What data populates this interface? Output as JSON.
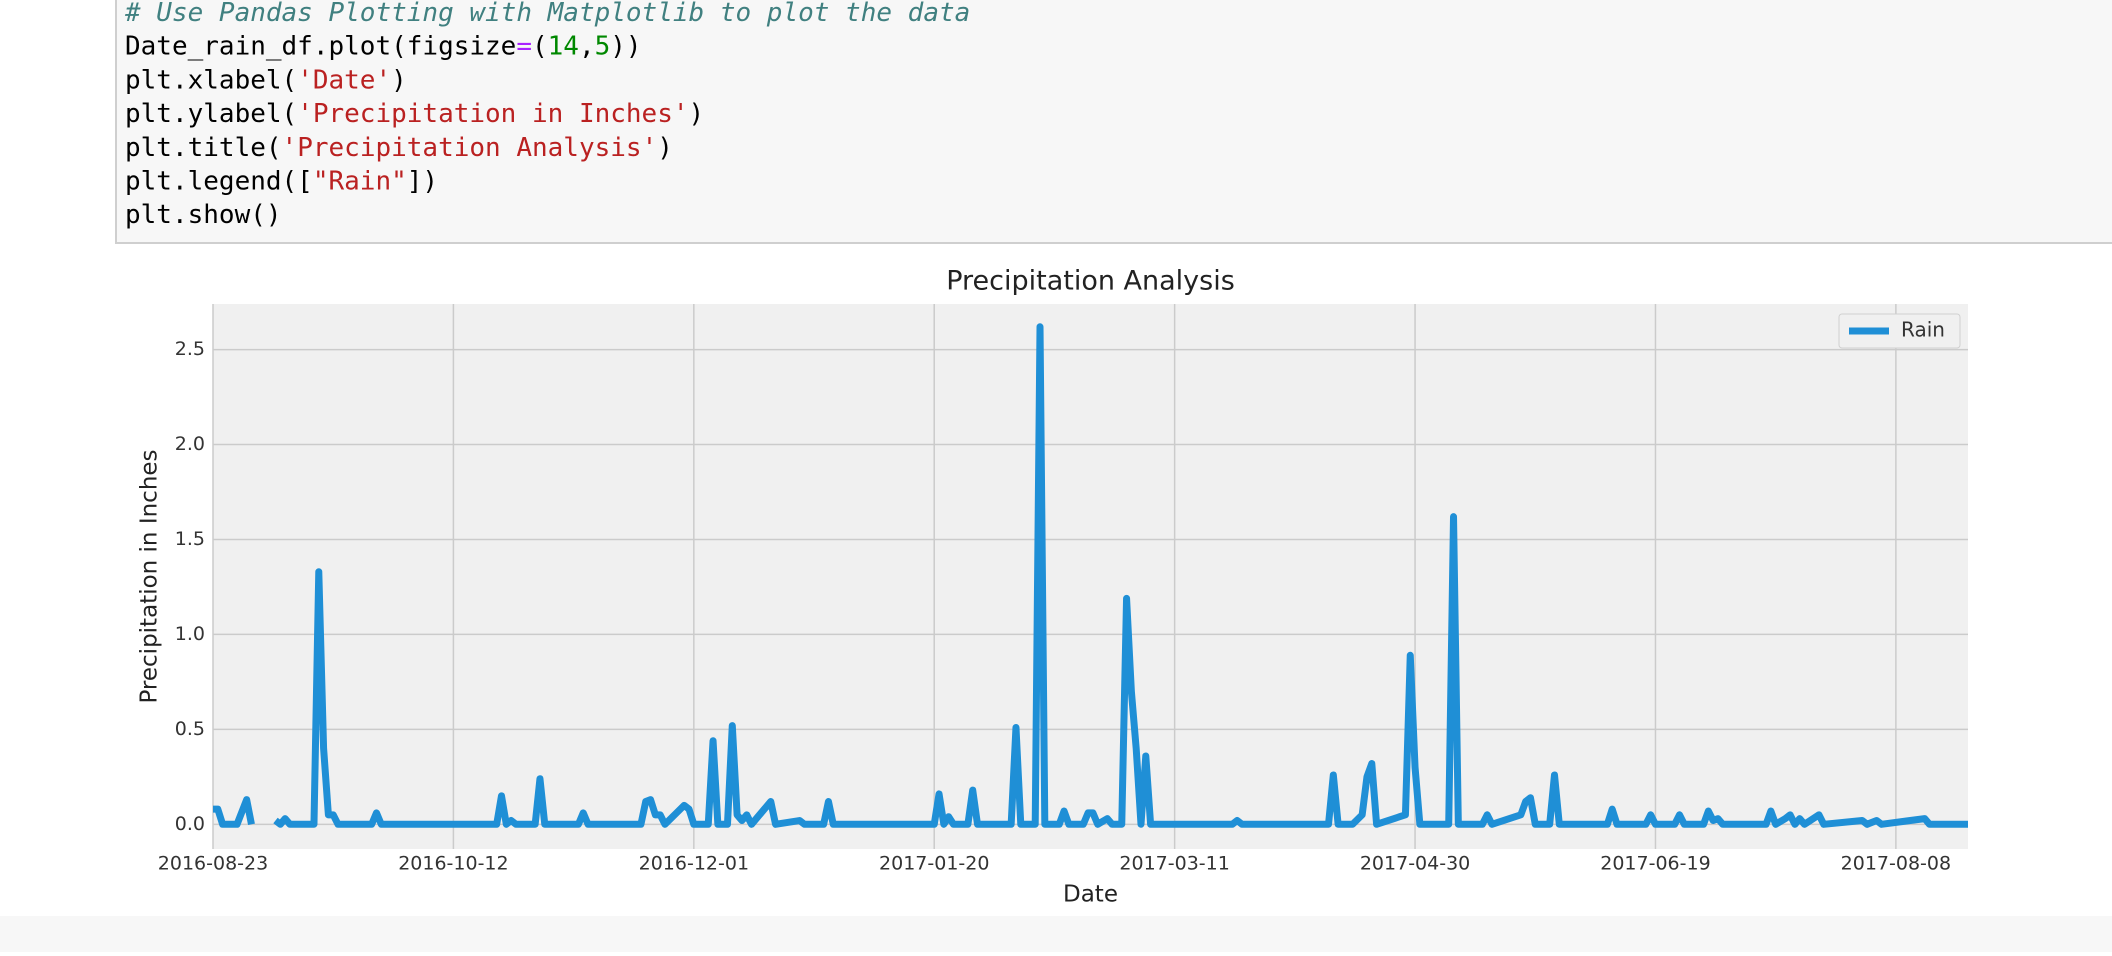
{
  "code": {
    "lines": [
      [
        {
          "text": "# Use Pandas Plotting with Matplotlib to plot the data",
          "color": "#408080",
          "italic": true
        }
      ],
      [
        {
          "text": "Date_rain_df.plot(figsize",
          "color": "#000000"
        },
        {
          "text": "=",
          "color": "#aa22ff"
        },
        {
          "text": "(",
          "color": "#000000"
        },
        {
          "text": "14",
          "color": "#008800"
        },
        {
          "text": ",",
          "color": "#000000"
        },
        {
          "text": "5",
          "color": "#008800"
        },
        {
          "text": "))",
          "color": "#000000"
        }
      ],
      [
        {
          "text": "plt.xlabel(",
          "color": "#000000"
        },
        {
          "text": "'Date'",
          "color": "#ba2121"
        },
        {
          "text": ")",
          "color": "#000000"
        }
      ],
      [
        {
          "text": "plt.ylabel(",
          "color": "#000000"
        },
        {
          "text": "'Precipitation in Inches'",
          "color": "#ba2121"
        },
        {
          "text": ")",
          "color": "#000000"
        }
      ],
      [
        {
          "text": "plt.title(",
          "color": "#000000"
        },
        {
          "text": "'Precipitation Analysis'",
          "color": "#ba2121"
        },
        {
          "text": ")",
          "color": "#000000"
        }
      ],
      [
        {
          "text": "plt.legend([",
          "color": "#000000"
        },
        {
          "text": "\"Rain\"",
          "color": "#ba2121"
        },
        {
          "text": "])",
          "color": "#000000"
        }
      ],
      [
        {
          "text": "plt.show()",
          "color": "#000000"
        }
      ]
    ]
  },
  "chart_data": {
    "type": "line",
    "title": "Precipitation Analysis",
    "x_label": "Date",
    "y_label": "Precipitation in Inches",
    "x": [
      "2016-08-23",
      "2016-08-24",
      "2016-08-25",
      "2016-08-28",
      "2016-08-30",
      "2016-08-31",
      "2016-09-04",
      "2016-09-05",
      "2016-09-06",
      "2016-09-07",
      "2016-09-08",
      "2016-09-13",
      "2016-09-14",
      "2016-09-15",
      "2016-09-16",
      "2016-09-17",
      "2016-09-18",
      "2016-09-25",
      "2016-09-26",
      "2016-09-27",
      "2016-10-21",
      "2016-10-22",
      "2016-10-23",
      "2016-10-24",
      "2016-10-25",
      "2016-10-29",
      "2016-10-30",
      "2016-10-31",
      "2016-11-07",
      "2016-11-08",
      "2016-11-09",
      "2016-11-20",
      "2016-11-21",
      "2016-11-22",
      "2016-11-23",
      "2016-11-24",
      "2016-11-25",
      "2016-11-29",
      "2016-11-30",
      "2016-12-01",
      "2016-12-04",
      "2016-12-05",
      "2016-12-06",
      "2016-12-08",
      "2016-12-09",
      "2016-12-10",
      "2016-12-11",
      "2016-12-12",
      "2016-12-13",
      "2016-12-17",
      "2016-12-18",
      "2016-12-23",
      "2016-12-24",
      "2016-12-28",
      "2016-12-29",
      "2016-12-30",
      "2017-01-20",
      "2017-01-21",
      "2017-01-22",
      "2017-01-23",
      "2017-01-24",
      "2017-01-27",
      "2017-01-28",
      "2017-01-29",
      "2017-02-05",
      "2017-02-06",
      "2017-02-07",
      "2017-02-10",
      "2017-02-11",
      "2017-02-12",
      "2017-02-15",
      "2017-02-16",
      "2017-02-17",
      "2017-02-20",
      "2017-02-21",
      "2017-02-22",
      "2017-02-23",
      "2017-02-25",
      "2017-02-26",
      "2017-02-28",
      "2017-03-01",
      "2017-03-02",
      "2017-03-03",
      "2017-03-04",
      "2017-03-05",
      "2017-03-06",
      "2017-03-23",
      "2017-03-24",
      "2017-03-25",
      "2017-04-12",
      "2017-04-13",
      "2017-04-14",
      "2017-04-17",
      "2017-04-19",
      "2017-04-20",
      "2017-04-21",
      "2017-04-22",
      "2017-04-28",
      "2017-04-29",
      "2017-04-30",
      "2017-05-01",
      "2017-05-07",
      "2017-05-08",
      "2017-05-09",
      "2017-05-14",
      "2017-05-15",
      "2017-05-16",
      "2017-05-22",
      "2017-05-23",
      "2017-05-24",
      "2017-05-25",
      "2017-05-28",
      "2017-05-29",
      "2017-05-30",
      "2017-06-09",
      "2017-06-10",
      "2017-06-11",
      "2017-06-17",
      "2017-06-18",
      "2017-06-19",
      "2017-06-23",
      "2017-06-24",
      "2017-06-25",
      "2017-06-29",
      "2017-06-30",
      "2017-07-01",
      "2017-07-02",
      "2017-07-03",
      "2017-07-12",
      "2017-07-13",
      "2017-07-14",
      "2017-07-16",
      "2017-07-17",
      "2017-07-18",
      "2017-07-19",
      "2017-07-20",
      "2017-07-23",
      "2017-07-24",
      "2017-08-01",
      "2017-08-02",
      "2017-08-04",
      "2017-08-05",
      "2017-08-14",
      "2017-08-15",
      "2017-08-23"
    ],
    "series": [
      {
        "name": "Rain",
        "color": "#1f8fd6",
        "values": [
          0.08,
          0.08,
          0,
          0,
          0.13,
          0,
          null,
          0.02,
          0,
          0.03,
          0,
          0,
          1.33,
          0.4,
          0.05,
          0.05,
          0,
          0,
          0.06,
          0,
          0,
          0.15,
          0,
          0.02,
          0,
          0,
          0.24,
          0,
          0,
          0.06,
          0,
          0,
          0.12,
          0.13,
          0.05,
          0.05,
          0,
          0.1,
          0.08,
          0,
          0,
          0.44,
          0,
          0,
          0.52,
          0.05,
          0.02,
          0.05,
          0,
          0.12,
          0,
          0.02,
          0,
          0,
          0.12,
          0,
          0,
          0.16,
          0,
          0.04,
          0,
          0,
          0.18,
          0,
          0,
          0.51,
          0,
          0,
          2.62,
          0,
          0,
          0.07,
          0,
          0,
          0.06,
          0.06,
          0,
          0.03,
          0,
          0,
          1.19,
          0.7,
          0.4,
          0,
          0.36,
          0,
          0,
          0.02,
          0,
          0,
          0.26,
          0,
          0,
          0.05,
          0.25,
          0.32,
          0,
          0.05,
          0.89,
          0.3,
          0,
          0,
          1.62,
          0,
          0,
          0.05,
          0,
          0.05,
          0.12,
          0.14,
          0,
          0,
          0.26,
          0,
          0,
          0.08,
          0,
          0,
          0.05,
          0,
          0,
          0.05,
          0,
          0,
          0.07,
          0.02,
          0.03,
          0,
          0,
          0.07,
          0,
          0.03,
          0.05,
          0,
          0.03,
          0,
          0.05,
          0,
          0.02,
          0,
          0.02,
          0,
          0.03,
          0,
          0
        ]
      }
    ],
    "xlim": [
      "2016-08-23",
      "2017-08-23"
    ],
    "xticks": [
      "2016-08-23",
      "2016-10-12",
      "2016-12-01",
      "2017-01-20",
      "2017-03-11",
      "2017-04-30",
      "2017-06-19",
      "2017-08-08"
    ],
    "ylim": [
      -0.13,
      2.74
    ],
    "yticks": [
      {
        "value": 0,
        "label": "0.0"
      },
      0.5,
      {
        "value": 1,
        "label": "1.0"
      },
      1.5,
      {
        "value": 2,
        "label": "2.0"
      },
      2.5
    ],
    "grid": true,
    "legend": "upper right"
  }
}
